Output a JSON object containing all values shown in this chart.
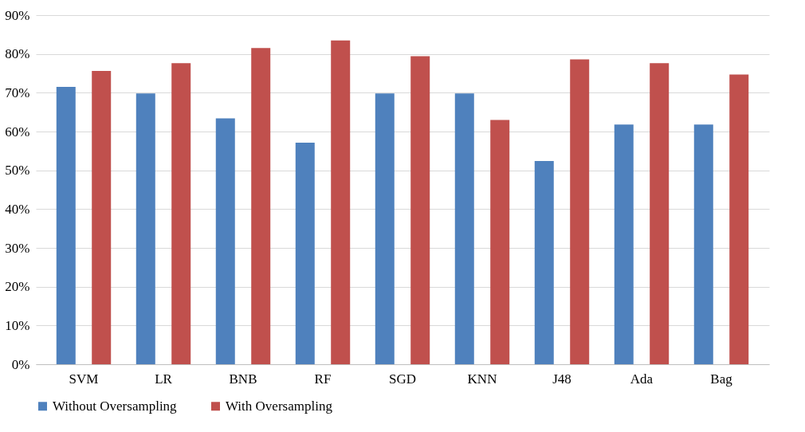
{
  "chart_data": {
    "type": "bar",
    "categories": [
      "SVM",
      "LR",
      "BNB",
      "RF",
      "SGD",
      "KNN",
      "J48",
      "Ada",
      "Bag"
    ],
    "series": [
      {
        "name": "Without Oversampling",
        "color": "#4f81bd",
        "values": [
          71.5,
          69.8,
          63.4,
          57.1,
          69.8,
          69.8,
          52.4,
          61.8,
          61.8
        ]
      },
      {
        "name": "With Oversampling",
        "color": "#c0504d",
        "values": [
          75.6,
          77.6,
          81.5,
          83.5,
          79.4,
          63.0,
          78.6,
          77.6,
          74.7
        ]
      }
    ],
    "ylim": [
      0,
      90
    ],
    "yticks": [
      {
        "value": 0,
        "label": "0%"
      },
      {
        "value": 10,
        "label": "10%"
      },
      {
        "value": 20,
        "label": "20%"
      },
      {
        "value": 30,
        "label": "30%"
      },
      {
        "value": 40,
        "label": "40%"
      },
      {
        "value": 50,
        "label": "50%"
      },
      {
        "value": 60,
        "label": "60%"
      },
      {
        "value": 70,
        "label": "70%"
      },
      {
        "value": 80,
        "label": "80%"
      },
      {
        "value": 90,
        "label": "90%"
      }
    ],
    "grid": "y",
    "legend": "bottom"
  }
}
